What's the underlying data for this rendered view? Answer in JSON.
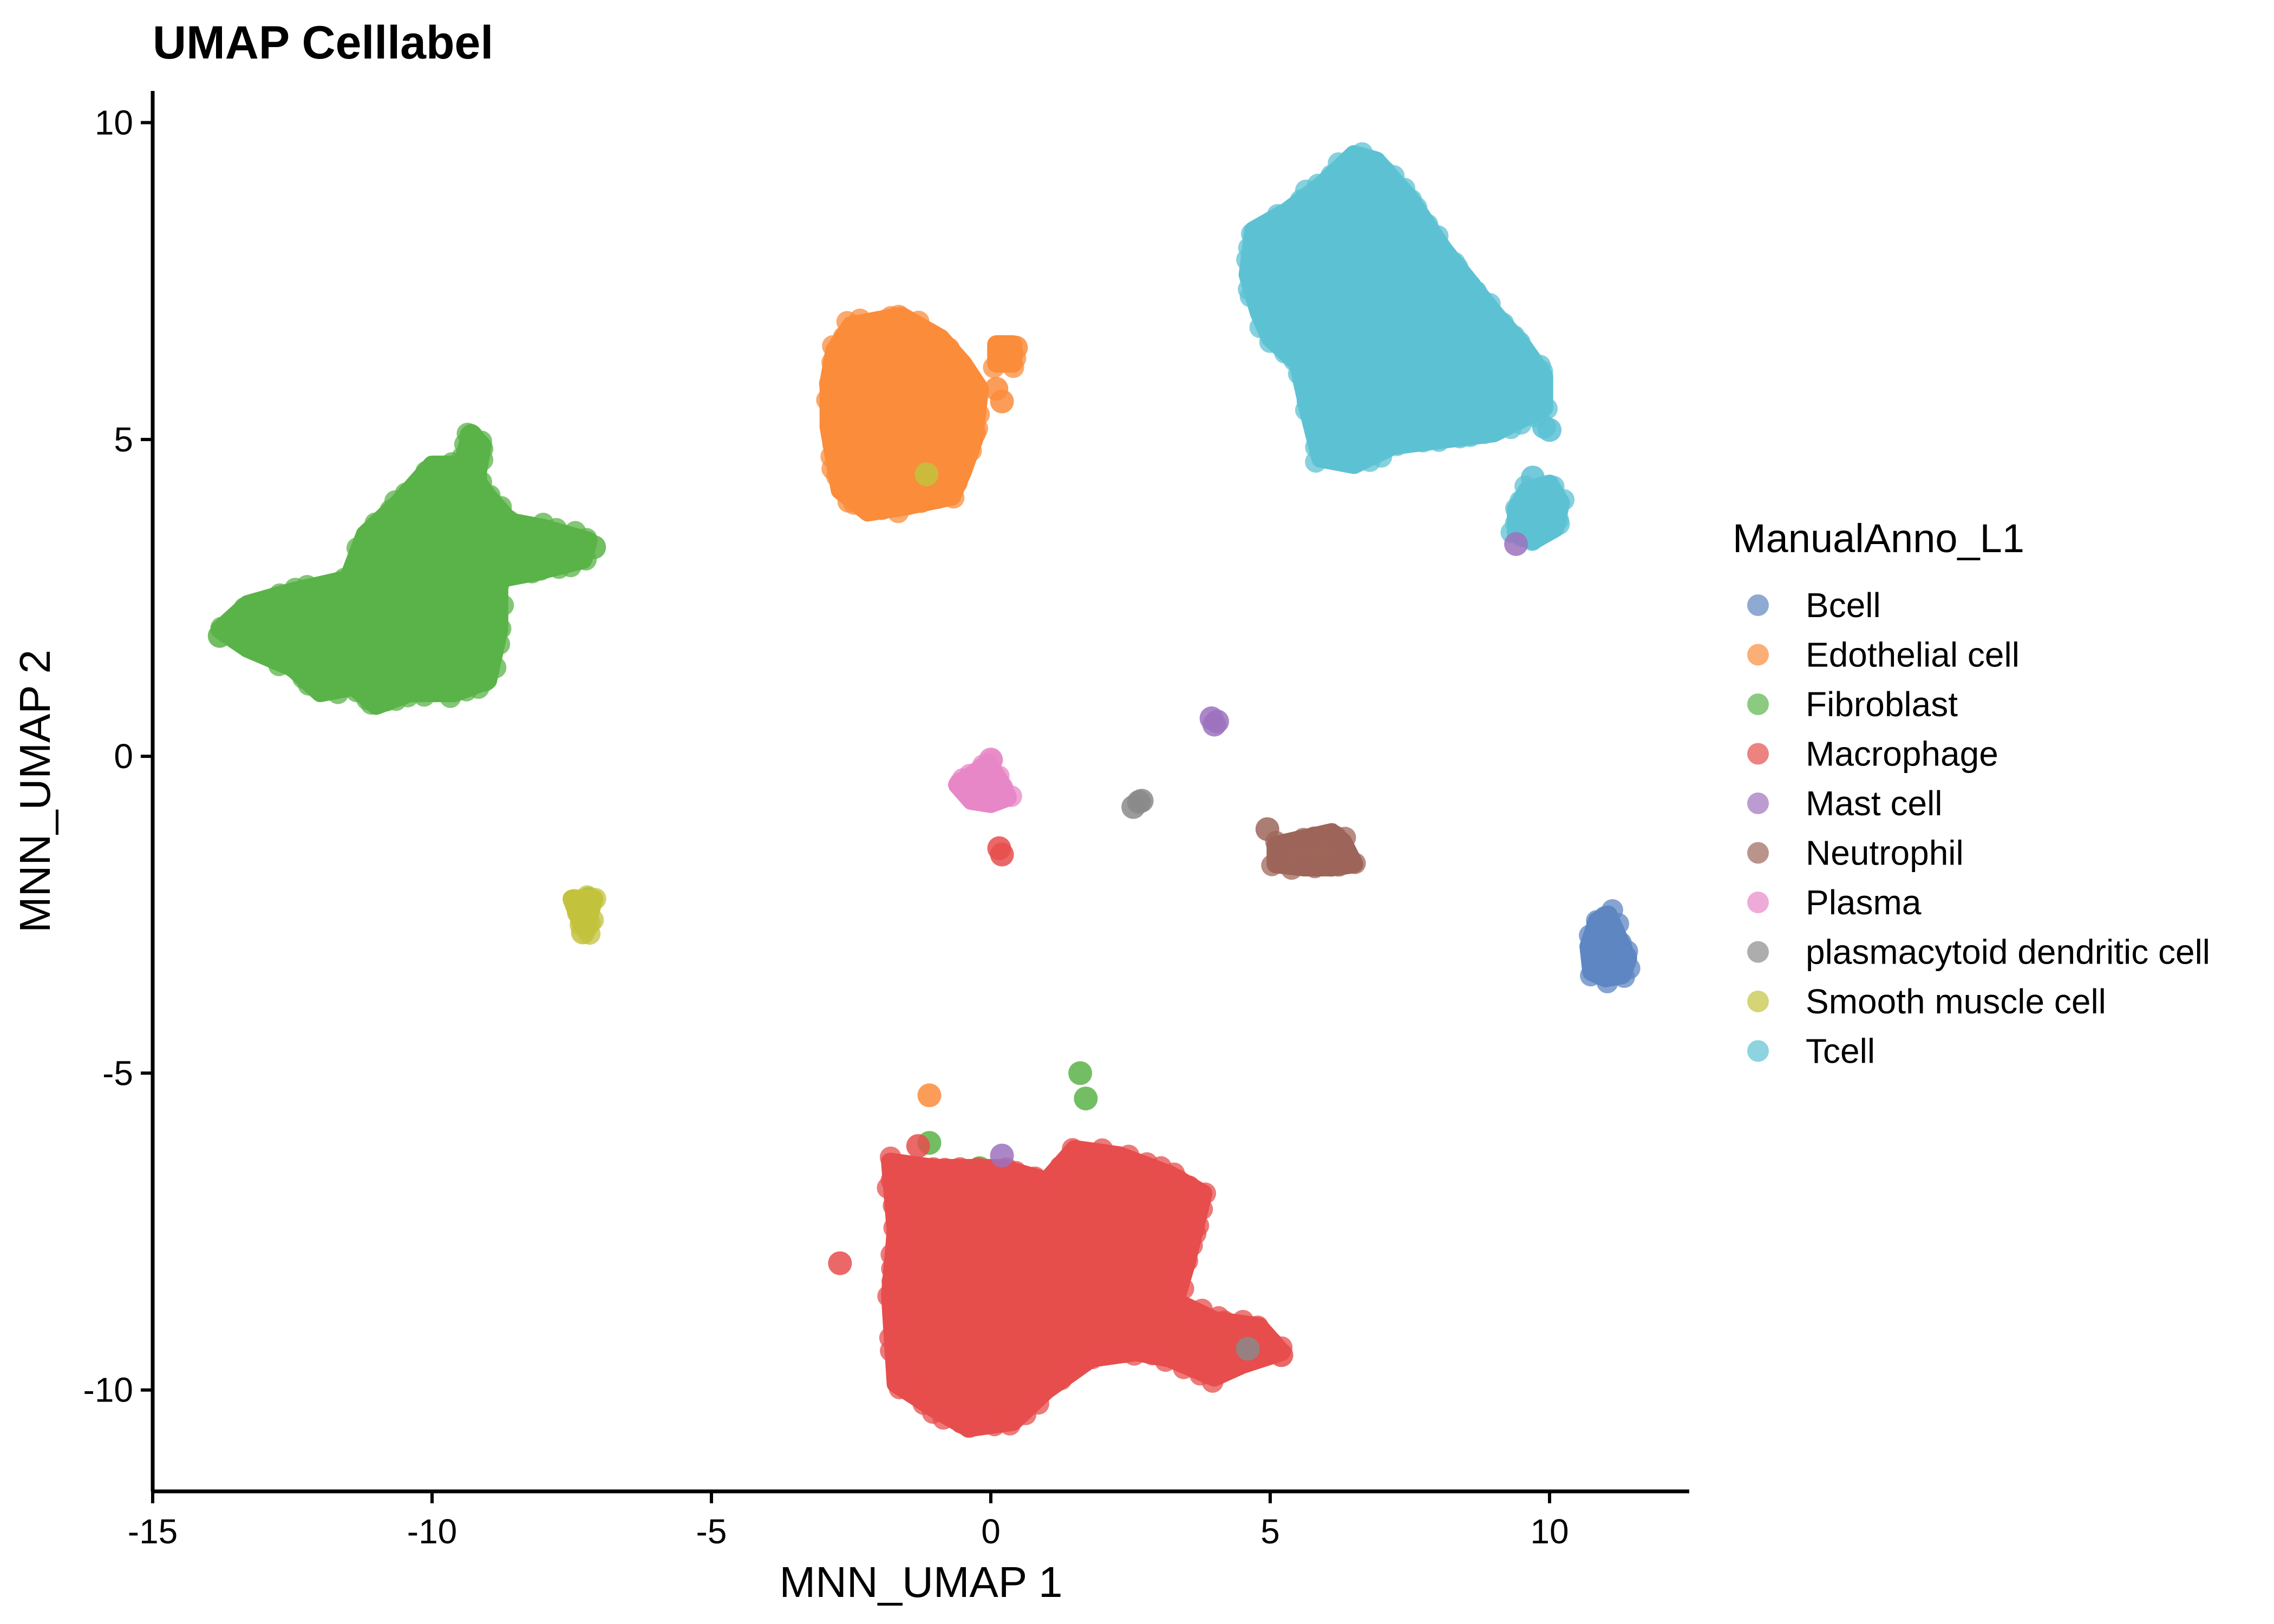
{
  "chart_data": {
    "type": "scatter",
    "title": "UMAP Celllabel",
    "xlabel": "MNN_UMAP 1",
    "ylabel": "MNN_UMAP 2",
    "xlim": [
      -15,
      12.5
    ],
    "ylim": [
      -11.6,
      10.5
    ],
    "xticks": [
      -15,
      -10,
      -5,
      0,
      5,
      10
    ],
    "yticks": [
      -10,
      -5,
      0,
      5,
      10
    ],
    "grid": false,
    "legend": {
      "title": "ManualAnno_L1",
      "position": "right",
      "entries": [
        {
          "label": "Bcell",
          "color": "#5E86C1"
        },
        {
          "label": "Edothelial cell",
          "color": "#FA8C3B"
        },
        {
          "label": "Fibroblast",
          "color": "#5AB348"
        },
        {
          "label": "Macrophage",
          "color": "#E64E4C"
        },
        {
          "label": "Mast cell",
          "color": "#9C72BE"
        },
        {
          "label": "Neutrophil",
          "color": "#9D6659"
        },
        {
          "label": "Plasma",
          "color": "#E887C7"
        },
        {
          "label": "plasmacytoid dendritic cell",
          "color": "#8A8A8A"
        },
        {
          "label": "Smooth muscle cell",
          "color": "#C3C23D"
        },
        {
          "label": "Tcell",
          "color": "#5CC1D3"
        }
      ]
    },
    "series": [
      {
        "name": "Fibroblast",
        "color": "#5AB348",
        "clusters": [
          {
            "polygon": [
              [
                -13.8,
                2.0
              ],
              [
                -13.3,
                2.4
              ],
              [
                -12.5,
                2.6
              ],
              [
                -11.5,
                2.8
              ],
              [
                -11.2,
                3.5
              ],
              [
                -10.6,
                4.0
              ],
              [
                -10.0,
                4.6
              ],
              [
                -9.4,
                4.6
              ],
              [
                -9.0,
                4.1
              ],
              [
                -8.6,
                3.7
              ],
              [
                -8.0,
                3.6
              ],
              [
                -7.2,
                3.4
              ],
              [
                -7.3,
                3.1
              ],
              [
                -8.2,
                2.9
              ],
              [
                -8.8,
                2.8
              ],
              [
                -8.8,
                2.0
              ],
              [
                -9.0,
                1.2
              ],
              [
                -9.6,
                1.0
              ],
              [
                -10.4,
                1.0
              ],
              [
                -11.0,
                0.8
              ],
              [
                -11.4,
                1.1
              ],
              [
                -12.0,
                1.0
              ],
              [
                -12.5,
                1.4
              ],
              [
                -13.3,
                1.7
              ]
            ]
          },
          {
            "polygon": [
              [
                -9.5,
                4.5
              ],
              [
                -9.3,
                5.1
              ],
              [
                -9.1,
                4.9
              ],
              [
                -9.2,
                4.4
              ]
            ]
          }
        ],
        "points": [
          [
            -13.8,
            1.9
          ],
          [
            -7.1,
            3.3
          ],
          [
            -9.3,
            5.05
          ],
          [
            -7.2,
            -2.25
          ],
          [
            -1.1,
            -6.1
          ],
          [
            -1.2,
            4.4
          ],
          [
            -0.5,
            5.0
          ],
          [
            1.6,
            -5.0
          ],
          [
            1.7,
            -5.4
          ],
          [
            -0.2,
            -6.5
          ]
        ]
      },
      {
        "name": "Edothelial cell",
        "color": "#FA8C3B",
        "clusters": [
          {
            "polygon": [
              [
                -2.8,
                6.4
              ],
              [
                -2.5,
                6.8
              ],
              [
                -1.6,
                6.95
              ],
              [
                -0.9,
                6.6
              ],
              [
                -0.5,
                6.2
              ],
              [
                -0.2,
                5.8
              ],
              [
                -0.3,
                5.0
              ],
              [
                -0.5,
                4.5
              ],
              [
                -0.7,
                4.1
              ],
              [
                -1.5,
                3.95
              ],
              [
                -2.2,
                3.85
              ],
              [
                -2.7,
                4.2
              ],
              [
                -2.9,
                5.2
              ],
              [
                -2.9,
                5.9
              ]
            ]
          },
          {
            "polygon": [
              [
                0.1,
                6.5
              ],
              [
                0.4,
                6.5
              ],
              [
                0.4,
                6.2
              ],
              [
                0.1,
                6.2
              ]
            ]
          }
        ],
        "points": [
          [
            0.1,
            5.8
          ],
          [
            0.2,
            5.6
          ],
          [
            -0.3,
            5.1
          ],
          [
            0.45,
            6.45
          ],
          [
            -1.1,
            -5.35
          ]
        ]
      },
      {
        "name": "Tcell",
        "color": "#5CC1D3",
        "clusters": [
          {
            "polygon": [
              [
                4.7,
                8.3
              ],
              [
                5.3,
                8.6
              ],
              [
                5.9,
                9.0
              ],
              [
                6.5,
                9.5
              ],
              [
                6.9,
                9.4
              ],
              [
                7.5,
                8.8
              ],
              [
                8.1,
                8.0
              ],
              [
                9.0,
                7.0
              ],
              [
                9.5,
                6.5
              ],
              [
                9.9,
                6.0
              ],
              [
                9.9,
                5.5
              ],
              [
                9.0,
                5.1
              ],
              [
                8.1,
                5.0
              ],
              [
                7.2,
                4.9
              ],
              [
                6.5,
                4.6
              ],
              [
                5.9,
                4.7
              ],
              [
                5.7,
                5.4
              ],
              [
                5.5,
                6.2
              ],
              [
                5.0,
                6.6
              ],
              [
                4.8,
                7.0
              ],
              [
                4.6,
                7.6
              ]
            ]
          },
          {
            "polygon": [
              [
                9.4,
                3.5
              ],
              [
                9.7,
                3.4
              ],
              [
                10.1,
                3.6
              ],
              [
                10.2,
                4.0
              ],
              [
                10.0,
                4.3
              ],
              [
                9.6,
                4.2
              ],
              [
                9.4,
                3.9
              ]
            ]
          }
        ],
        "points": [
          [
            9.9,
            5.2
          ],
          [
            9.7,
            4.4
          ],
          [
            10.0,
            5.15
          ]
        ]
      },
      {
        "name": "Macrophage",
        "color": "#E64E4C",
        "clusters": [
          {
            "polygon": [
              [
                -1.8,
                -6.4
              ],
              [
                -1.0,
                -6.5
              ],
              [
                0.2,
                -6.5
              ],
              [
                1.0,
                -6.7
              ],
              [
                1.5,
                -6.2
              ],
              [
                2.3,
                -6.3
              ],
              [
                3.2,
                -6.6
              ],
              [
                3.8,
                -6.9
              ],
              [
                3.5,
                -8.0
              ],
              [
                3.3,
                -8.6
              ],
              [
                4.0,
                -8.9
              ],
              [
                4.8,
                -9.0
              ],
              [
                5.2,
                -9.4
              ],
              [
                4.5,
                -9.6
              ],
              [
                4.0,
                -9.8
              ],
              [
                3.2,
                -9.5
              ],
              [
                2.6,
                -9.4
              ],
              [
                1.8,
                -9.5
              ],
              [
                1.0,
                -10.0
              ],
              [
                0.4,
                -10.5
              ],
              [
                -0.4,
                -10.6
              ],
              [
                -1.0,
                -10.3
              ],
              [
                -1.7,
                -9.9
              ],
              [
                -1.8,
                -8.5
              ],
              [
                -1.7,
                -7.5
              ]
            ]
          }
        ],
        "points": [
          [
            -2.7,
            -8.0
          ],
          [
            -1.3,
            -6.15
          ],
          [
            0.15,
            -1.45
          ],
          [
            0.2,
            -1.55
          ],
          [
            4.1,
            -9.7
          ],
          [
            3.9,
            -9.5
          ],
          [
            -1.7,
            -8.2
          ],
          [
            5.2,
            -9.45
          ]
        ]
      },
      {
        "name": "Bcell",
        "color": "#5E86C1",
        "clusters": [
          {
            "polygon": [
              [
                10.7,
                -3.0
              ],
              [
                10.85,
                -2.6
              ],
              [
                11.05,
                -2.5
              ],
              [
                11.25,
                -2.9
              ],
              [
                11.4,
                -3.2
              ],
              [
                11.3,
                -3.45
              ],
              [
                11.0,
                -3.5
              ],
              [
                10.75,
                -3.4
              ]
            ]
          }
        ],
        "points": [
          [
            11.0,
            -2.55
          ]
        ]
      },
      {
        "name": "Mast cell",
        "color": "#9C72BE",
        "clusters": [],
        "points": [
          [
            3.95,
            0.6
          ],
          [
            4.05,
            0.55
          ],
          [
            4.0,
            0.5
          ],
          [
            9.4,
            3.35
          ],
          [
            0.2,
            -6.3
          ]
        ]
      },
      {
        "name": "Neutrophil",
        "color": "#9D6659",
        "clusters": [
          {
            "polygon": [
              [
                5.1,
                -1.4
              ],
              [
                5.6,
                -1.3
              ],
              [
                6.1,
                -1.2
              ],
              [
                6.3,
                -1.35
              ],
              [
                6.5,
                -1.7
              ],
              [
                6.1,
                -1.75
              ],
              [
                5.6,
                -1.75
              ],
              [
                5.1,
                -1.7
              ]
            ]
          }
        ],
        "points": [
          [
            4.95,
            -1.15
          ]
        ]
      },
      {
        "name": "Plasma",
        "color": "#E887C7",
        "clusters": [
          {
            "polygon": [
              [
                -0.6,
                -0.45
              ],
              [
                -0.35,
                -0.3
              ],
              [
                -0.05,
                -0.1
              ],
              [
                0.2,
                -0.45
              ],
              [
                0.3,
                -0.65
              ],
              [
                0.0,
                -0.75
              ],
              [
                -0.35,
                -0.7
              ]
            ]
          }
        ],
        "points": [
          [
            0.0,
            -0.05
          ]
        ]
      },
      {
        "name": "plasmacytoid dendritic cell",
        "color": "#8A8A8A",
        "clusters": [],
        "points": [
          [
            2.55,
            -0.8
          ],
          [
            2.65,
            -0.72
          ],
          [
            2.7,
            -0.7
          ],
          [
            4.6,
            -9.35
          ]
        ]
      },
      {
        "name": "Smooth muscle cell",
        "color": "#C3C23D",
        "clusters": [
          {
            "polygon": [
              [
                -7.5,
                -2.25
              ],
              [
                -7.1,
                -2.25
              ],
              [
                -7.2,
                -2.55
              ],
              [
                -7.25,
                -2.75
              ],
              [
                -7.35,
                -2.6
              ]
            ]
          }
        ],
        "points": [
          [
            -7.3,
            -2.78
          ],
          [
            -1.15,
            4.45
          ]
        ]
      }
    ]
  }
}
